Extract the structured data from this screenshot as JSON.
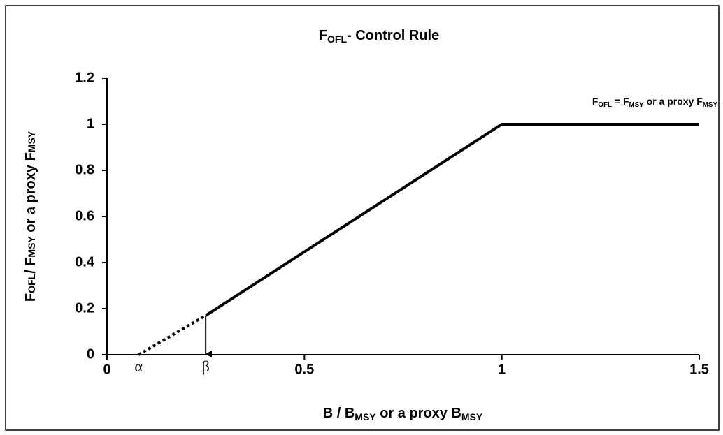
{
  "chart_data": {
    "type": "line",
    "title": [
      "F",
      "OFL",
      "- Control Rule"
    ],
    "x_label": [
      "B / B",
      "MSY",
      " or a proxy B",
      "MSY"
    ],
    "y_label": [
      "F",
      "OFL",
      "/ F",
      "MSY",
      " or a proxy F",
      "MSY"
    ],
    "annotation": [
      "F",
      "OFL",
      " = F",
      "MSY",
      " or a proxy F",
      "MSY"
    ],
    "xlim": [
      0,
      1.5
    ],
    "xticks": [
      0,
      0.5,
      1,
      1.5
    ],
    "ylim": [
      0,
      1.2
    ],
    "yticks": [
      0,
      0.2,
      0.4,
      0.6,
      0.8,
      1,
      1.2
    ],
    "series": [
      {
        "color": "#000000",
        "dash": false,
        "x": [
          0.25,
          1,
          1.5
        ],
        "values": [
          0.17,
          1,
          1
        ]
      },
      {
        "color": "#000000",
        "dash": true,
        "x": [
          0.08,
          0.25
        ],
        "values": [
          0,
          0.17
        ]
      }
    ],
    "point_labels": [
      {
        "text": "α",
        "x": 0.08
      },
      {
        "text": "β",
        "x": 0.25
      }
    ]
  }
}
